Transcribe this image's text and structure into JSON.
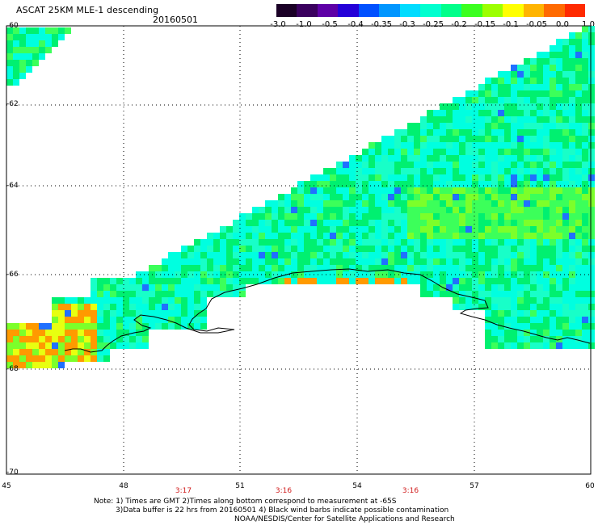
{
  "header": {
    "title": "ASCAT 25KM MLE-1 descending",
    "date": "20160501"
  },
  "colorbar": {
    "labels": [
      "-3.0",
      "-1.0",
      "-0.5",
      "-0.4",
      "-0.35",
      "-0.3",
      "-0.25",
      "-0.2",
      "-0.15",
      "-0.1",
      "-0.05",
      "0.0",
      "1.0"
    ],
    "colors": [
      "#1a0026",
      "#3a005e",
      "#5e00a6",
      "#2400d8",
      "#0050ff",
      "#0096ff",
      "#00dcff",
      "#00ffcf",
      "#00ff8a",
      "#3bff20",
      "#9cff00",
      "#ffff00",
      "#ffb400",
      "#ff6a00",
      "#ff2a00"
    ]
  },
  "map": {
    "lat_labels": [
      "-60",
      "-62",
      "-64",
      "-66",
      "-68",
      "-70"
    ],
    "lon_labels": [
      "45",
      "48",
      "51",
      "54",
      "57",
      "60"
    ],
    "pass_times": [
      "3:17",
      "3:16",
      "3:16"
    ]
  },
  "notes": {
    "line1": "Note: 1) Times are GMT 2)Times along bottom correspond to measurement at -65S",
    "line2": "3)Data buffer is 22 hrs from 20160501 4) Black wind barbs indicate possible contamination",
    "line3": "NOAA/NESDIS/Center for Satellite Applications and Research"
  }
}
